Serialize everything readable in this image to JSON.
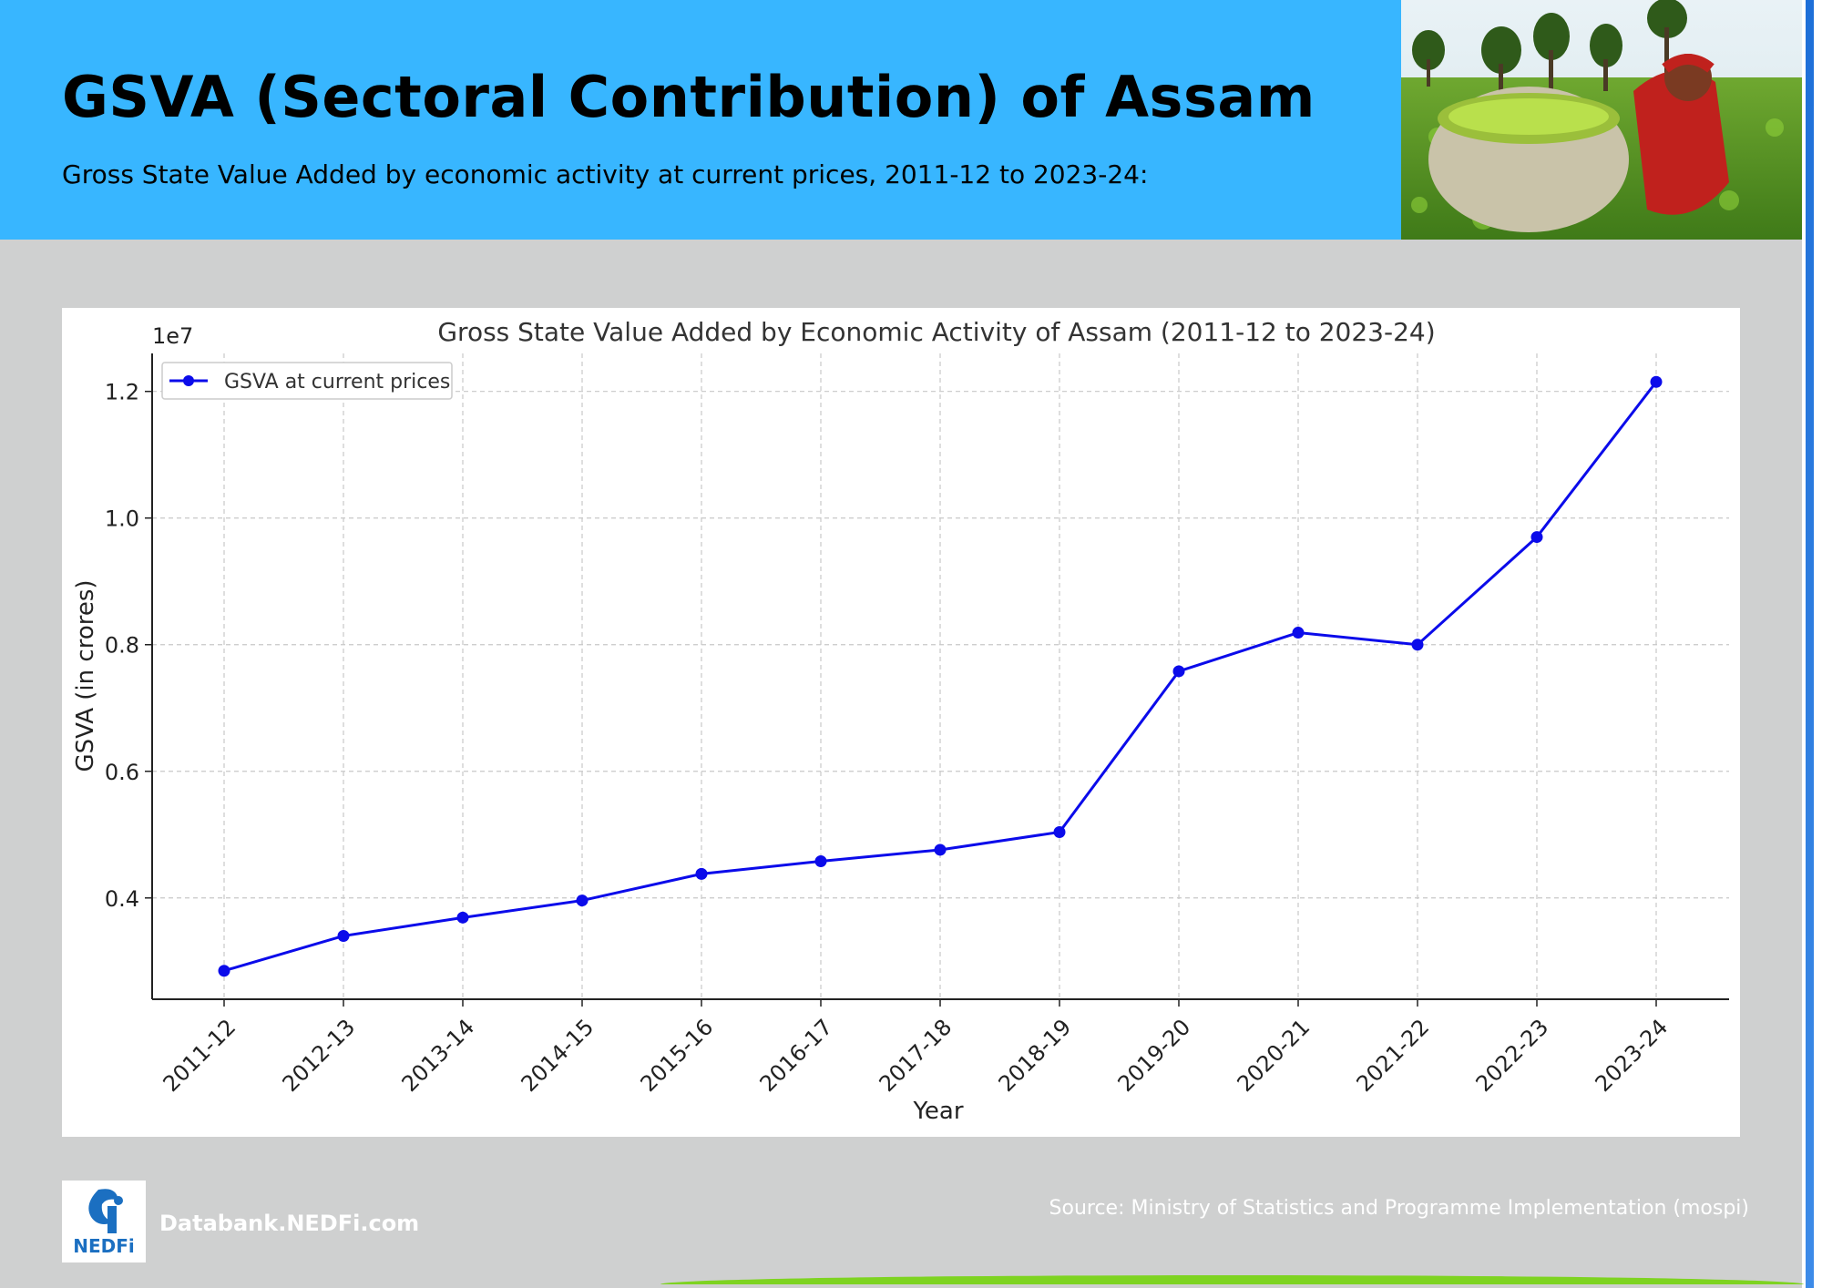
{
  "header": {
    "title": "GSVA (Sectoral Contribution) of Assam",
    "subtitle": "Gross State Value Added by economic activity at current prices, 2011-12 to 2023-24:",
    "background_color": "#38b6ff",
    "photo_icon": "tea-plucker-photo"
  },
  "chart_data": {
    "type": "line",
    "title": "Gross State Value Added by Economic Activity of Assam (2011-12 to 2023-24)",
    "xlabel": "Year",
    "ylabel": "GSVA (in crores)",
    "y_offset_label": "1e7",
    "categories": [
      "2011-12",
      "2012-13",
      "2013-14",
      "2014-15",
      "2015-16",
      "2016-17",
      "2017-18",
      "2018-19",
      "2019-20",
      "2020-21",
      "2021-22",
      "2022-23",
      "2023-24"
    ],
    "series": [
      {
        "name": "GSVA at current prices",
        "color": "#0b0bea",
        "values": [
          2.85,
          3.4,
          3.69,
          3.96,
          4.38,
          4.58,
          4.76,
          5.04,
          7.58,
          8.19,
          8.0,
          9.7,
          12.15
        ]
      }
    ],
    "y_ticks": [
      "0.4",
      "0.6",
      "0.8",
      "1.0",
      "1.2"
    ],
    "y_tick_values": [
      4,
      6,
      8,
      10,
      12
    ],
    "ylim": [
      2.4,
      12.6
    ],
    "grid": true,
    "legend_position": "top-left"
  },
  "footer": {
    "site": "Databank.NEDFi.com",
    "source": "Source: Ministry of Statistics and Programme Implementation (mospi)",
    "logo_text": "NEDFi",
    "accent_green": "#7ed321"
  }
}
